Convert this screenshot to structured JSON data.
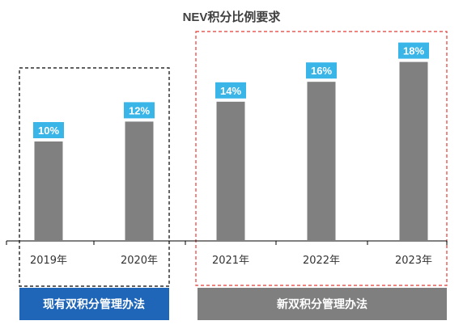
{
  "chart_data": {
    "type": "bar",
    "title": "NEV积分比例要求",
    "categories": [
      "2019年",
      "2020年",
      "2021年",
      "2022年",
      "2023年"
    ],
    "values": [
      10,
      12,
      14,
      16,
      18
    ],
    "value_labels": [
      "10%",
      "12%",
      "14%",
      "16%",
      "18%"
    ],
    "bar_color": "#808080",
    "label_color": "#3ab5e8",
    "groups": [
      {
        "name": "现有双积分管理办法",
        "categories": [
          "2019年",
          "2020年"
        ],
        "box_style": "black-dashed",
        "banner_color": "#1f66b8"
      },
      {
        "name": "新双积分管理办法",
        "categories": [
          "2021年",
          "2022年",
          "2023年"
        ],
        "box_style": "red-dashed",
        "banner_color": "#7f7f7f"
      }
    ]
  }
}
